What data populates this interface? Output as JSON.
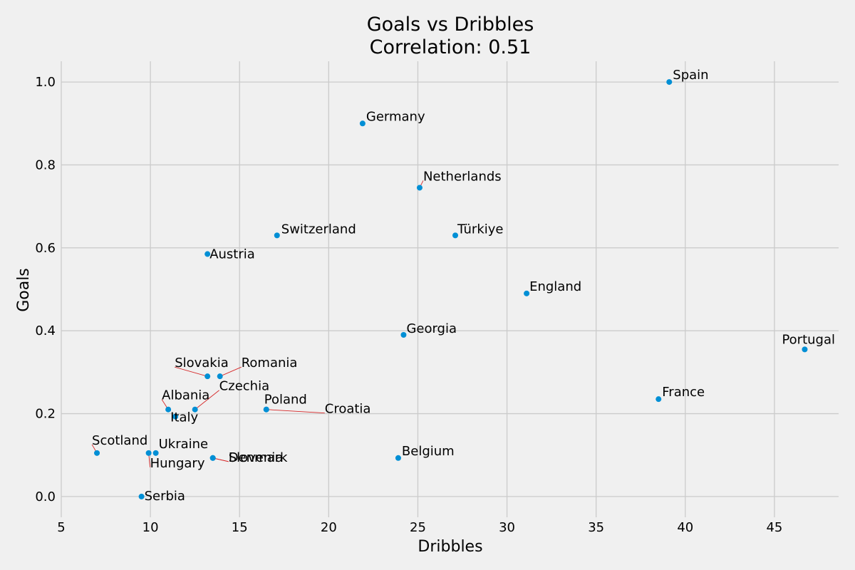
{
  "chart_data": {
    "type": "scatter",
    "title": "Goals vs Dribbles",
    "subtitle": "Correlation: 0.51",
    "xlabel": "Dribbles",
    "ylabel": "Goals",
    "xlim": [
      5,
      48.6
    ],
    "ylim": [
      -0.05,
      1.05
    ],
    "x_ticks": [
      5,
      10,
      15,
      20,
      25,
      30,
      35,
      40,
      45
    ],
    "y_ticks": [
      0.0,
      0.2,
      0.4,
      0.6,
      0.8,
      1.0
    ],
    "x_tick_labels": [
      "5",
      "10",
      "15",
      "20",
      "25",
      "30",
      "35",
      "40",
      "45"
    ],
    "y_tick_labels": [
      "0.0",
      "0.2",
      "0.4",
      "0.6",
      "0.8",
      "1.0"
    ],
    "grid": true,
    "point_color": "#008fd5",
    "leader_color": "#d62728",
    "points": [
      {
        "label": "Spain",
        "x": 39.1,
        "y": 1.0
      },
      {
        "label": "Germany",
        "x": 21.9,
        "y": 0.9
      },
      {
        "label": "Netherlands",
        "x": 25.1,
        "y": 0.745
      },
      {
        "label": "Switzerland",
        "x": 17.1,
        "y": 0.63
      },
      {
        "label": "Türkiye",
        "x": 27.1,
        "y": 0.63
      },
      {
        "label": "Austria",
        "x": 13.2,
        "y": 0.585
      },
      {
        "label": "England",
        "x": 31.1,
        "y": 0.49
      },
      {
        "label": "Georgia",
        "x": 24.2,
        "y": 0.39
      },
      {
        "label": "Portugal",
        "x": 46.7,
        "y": 0.355
      },
      {
        "label": "Slovakia",
        "x": 13.2,
        "y": 0.29
      },
      {
        "label": "Romania",
        "x": 13.9,
        "y": 0.29
      },
      {
        "label": "France",
        "x": 38.5,
        "y": 0.235
      },
      {
        "label": "Czechia",
        "x": 12.5,
        "y": 0.21
      },
      {
        "label": "Albania",
        "x": 11.0,
        "y": 0.21
      },
      {
        "label": "Poland",
        "x": 16.5,
        "y": 0.21
      },
      {
        "label": "Croatia",
        "x": 16.5,
        "y": 0.21
      },
      {
        "label": "Italy",
        "x": 11.4,
        "y": 0.193
      },
      {
        "label": "Scotland",
        "x": 7.0,
        "y": 0.105
      },
      {
        "label": "Ukraine",
        "x": 10.3,
        "y": 0.105
      },
      {
        "label": "Hungary",
        "x": 9.9,
        "y": 0.105
      },
      {
        "label": "Slovenia",
        "x": 13.5,
        "y": 0.093
      },
      {
        "label": "Denmark",
        "x": 13.5,
        "y": 0.093
      },
      {
        "label": "Belgium",
        "x": 23.9,
        "y": 0.093
      },
      {
        "label": "Serbia",
        "x": 9.5,
        "y": 0.0
      }
    ]
  }
}
